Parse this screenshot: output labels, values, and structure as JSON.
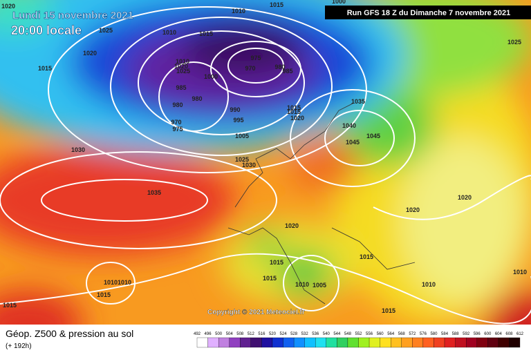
{
  "header": {
    "date": "Lundi 15 novembre 2021",
    "time": "20:00 locale",
    "run": "Run GFS 18 Z du Dimanche 7 novembre 2021"
  },
  "map": {
    "isobar_labels": [
      1000,
      1010,
      1015,
      1020,
      1025,
      1010,
      1015,
      1020,
      1015,
      975,
      970,
      980,
      985,
      1010,
      1020,
      1025,
      1000,
      985,
      980,
      980,
      990,
      995,
      1015,
      1015,
      1020,
      1035,
      1040,
      1045,
      1045,
      1005,
      970,
      975,
      1030,
      1025,
      1030,
      1025,
      1035,
      1020,
      1020,
      1020,
      1015,
      1015,
      1015,
      1010,
      1010,
      1010,
      1005,
      1015,
      1010,
      1010,
      1015,
      1015
    ],
    "copyright": "Copyright © 2021 Meteociel.fr"
  },
  "footer": {
    "title": "Géop. Z500 & pression au sol",
    "lead": "(+ 192h)",
    "scale": [
      492,
      496,
      500,
      504,
      508,
      512,
      516,
      520,
      524,
      528,
      532,
      536,
      540,
      544,
      548,
      552,
      556,
      560,
      564,
      568,
      572,
      576,
      580,
      584,
      588,
      592,
      596,
      600,
      604,
      608,
      612
    ],
    "colors": [
      "#ffffff",
      "#e0b0ff",
      "#c080e0",
      "#9040c0",
      "#602090",
      "#401070",
      "#2010a0",
      "#1030d0",
      "#1060f0",
      "#1090ff",
      "#10c0ff",
      "#20e0f0",
      "#20e0a0",
      "#30d060",
      "#60e030",
      "#a0f020",
      "#e0f020",
      "#ffe020",
      "#ffc020",
      "#ffa020",
      "#ff8020",
      "#ff6020",
      "#f04020",
      "#e02020",
      "#c01020",
      "#a00020",
      "#800010",
      "#600010",
      "#400000",
      "#200000"
    ]
  }
}
